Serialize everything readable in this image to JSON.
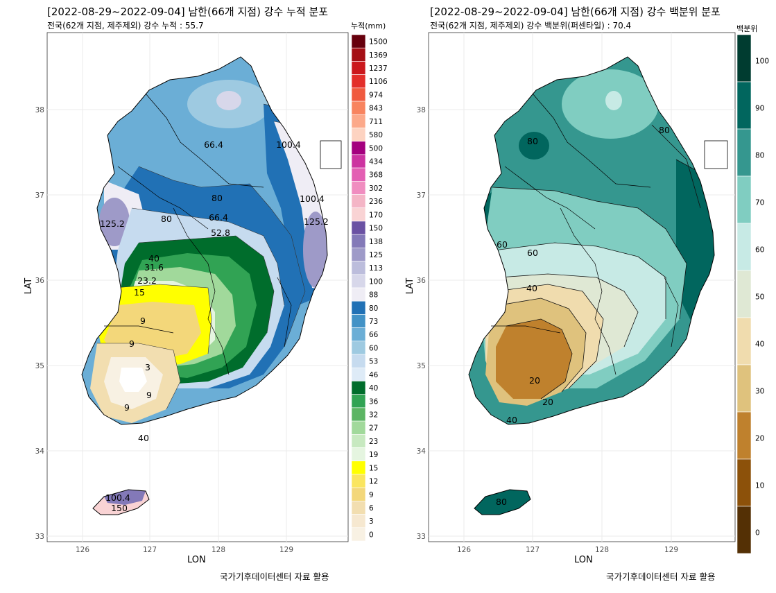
{
  "left_panel": {
    "title": "[2022-08-29~2022-09-04] 남한(66개 지점) 강수 누적 분포",
    "subtitle": "전국(62개 지점, 제주제외) 강수 누적 : 55.7",
    "legend_title": "누적(mm)",
    "legend_levels": [
      "1500",
      "1369",
      "1237",
      "1106",
      "974",
      "843",
      "711",
      "580",
      "500",
      "434",
      "368",
      "302",
      "236",
      "170",
      "150",
      "138",
      "125",
      "113",
      "100",
      "88",
      "80",
      "73",
      "66",
      "60",
      "53",
      "46",
      "40",
      "36",
      "32",
      "27",
      "23",
      "19",
      "15",
      "12",
      "9",
      "6",
      "3",
      "0"
    ],
    "legend_colors": [
      "#67000d",
      "#a50f15",
      "#cb181d",
      "#e32e2a",
      "#f05a3f",
      "#f8845f",
      "#fca98a",
      "#fdd3c1",
      "#a4007e",
      "#cc33a0",
      "#e35fb3",
      "#f08dc0",
      "#f4b5c6",
      "#f9d3d4",
      "#6a51a3",
      "#8379b8",
      "#9e9ac8",
      "#bcbddc",
      "#d7d7ea",
      "#efedf5",
      "#2171b5",
      "#4292c6",
      "#6baed6",
      "#9ecae1",
      "#c6dbef",
      "#deebf7",
      "#006d2c",
      "#31a354",
      "#5cb564",
      "#a1d99b",
      "#c7e9c0",
      "#e5f5e0",
      "#ffff00",
      "#fae55f",
      "#f3d77a",
      "#f2deb0",
      "#f6e8d0",
      "#f8f1e3"
    ],
    "contour_labels": [
      "66.4",
      "100.4",
      "80",
      "100.4",
      "125.2",
      "80",
      "66.4",
      "52.8",
      "125.2",
      "40",
      "31.6",
      "23.2",
      "15",
      "9",
      "9",
      "3",
      "9",
      "9",
      "40",
      "100.4",
      "150"
    ],
    "x_ticks": [
      "126",
      "127",
      "128",
      "129"
    ],
    "y_ticks": [
      "38",
      "37",
      "36",
      "35",
      "34",
      "33"
    ],
    "xlabel": "LON",
    "ylabel": "LAT",
    "caption": "국가기후데이터센터 자료 활용"
  },
  "right_panel": {
    "title": "[2022-08-29~2022-09-04] 남한(66개 지점) 강수 백분위 분포",
    "subtitle": "전국(62개 지점, 제주제외) 강수 백분위(퍼센타일) : 70.4",
    "legend_title": "백분위",
    "legend_levels": [
      "100",
      "90",
      "80",
      "70",
      "60",
      "50",
      "40",
      "30",
      "20",
      "10",
      "0"
    ],
    "legend_colors": [
      "#003c30",
      "#01665e",
      "#35978f",
      "#80cdc1",
      "#c7eae5",
      "#dfe8d4",
      "#f0dcae",
      "#dfc27d",
      "#bf812d",
      "#8c510a",
      "#543005"
    ],
    "contour_labels": [
      "80",
      "80",
      "60",
      "40",
      "20",
      "20",
      "60",
      "40",
      "80"
    ],
    "x_ticks": [
      "126",
      "127",
      "128",
      "129"
    ],
    "y_ticks": [
      "38",
      "37",
      "36",
      "35",
      "34",
      "33"
    ],
    "xlabel": "LON",
    "ylabel": "LAT",
    "caption": "국가기후데이터센터 자료 활용"
  }
}
